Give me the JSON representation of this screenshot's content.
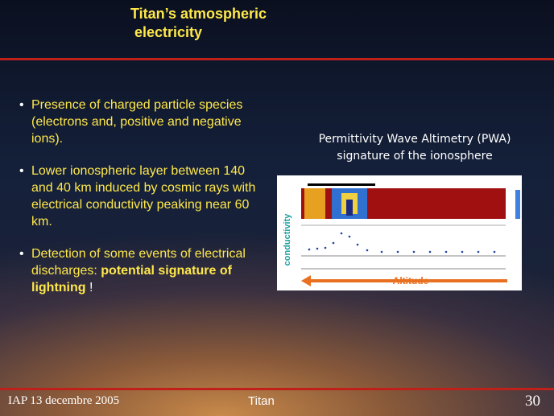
{
  "slide": {
    "title": [
      "Titan’s atmospheric",
      "electricity"
    ],
    "bullets": [
      {
        "text": "Presence of charged particle species (electrons and, positive and negative ions)."
      },
      {
        "text": "Lower ionospheric layer between 140 and 40 km induced by cosmic rays with electrical conductivity peaking near 60 km."
      },
      {
        "text": "Detection of some events of electrical discharges: ",
        "emphasis": "potential signature of lightning",
        "end": " !"
      }
    ],
    "figure": {
      "caption": [
        "Permittivity Wave Altimetry (PWA)",
        "signature of the ionosphere"
      ],
      "y_label": "conductivity",
      "x_label": "Altitude"
    },
    "footer": {
      "left": "IAP 13 decembre 2005",
      "center": "Titan",
      "page": "30"
    }
  }
}
